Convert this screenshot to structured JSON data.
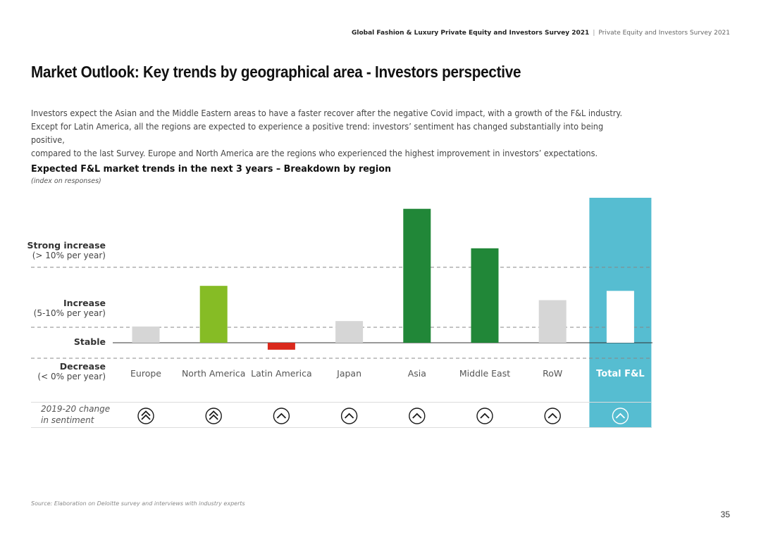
{
  "header": {
    "report": "Global Fashion & Luxury Private Equity and Investors Survey 2021",
    "separator": "|",
    "subtitle": "Private Equity and Investors Survey 2021"
  },
  "page_title": "Market Outlook: Key trends by geographical area - Investors perspective",
  "intro": [
    "Investors expect the Asian and the Middle Eastern areas to have a faster recover after the negative Covid impact, with a growth of the F&L industry.",
    "Except for Latin America, all the regions are expected to experience a positive trend: investors’ sentiment has changed substantially into being positive,",
    "compared to the last Survey. Europe and North America are the regions who experienced the highest improvement in investors’ expectations."
  ],
  "chart_data": {
    "type": "bar",
    "title": "Expected F&L market trends in the next 3 years – Breakdown by region",
    "subtitle": "(index on responses)",
    "categories": [
      "Europe",
      "North America",
      "Latin America",
      "Japan",
      "Asia",
      "Middle East",
      "RoW",
      "Total F&L"
    ],
    "values": [
      0.42,
      1.47,
      -0.18,
      0.56,
      3.46,
      2.44,
      1.1,
      1.34
    ],
    "ylim": [
      -0.5,
      3.7
    ],
    "y_levels": [
      {
        "name": "Strong increase",
        "desc": "(> 10% per year)",
        "value": 1.95
      },
      {
        "name": "Increase",
        "desc": "(5-10% per year)",
        "value": 0.4
      },
      {
        "name": "Stable",
        "desc": "",
        "value": 0
      },
      {
        "name": "Decrease",
        "desc": "(< 0% per year)",
        "value": -0.4
      }
    ],
    "bar_colors": [
      "#d6d6d6",
      "#86bc25",
      "#da291c",
      "#d6d6d6",
      "#218738",
      "#218738",
      "#d6d6d6",
      "#ffffff"
    ],
    "highlight_color": "#56bdd1",
    "highlight_category": "Total F&L",
    "sentiment_label": [
      "2019-20 change",
      "in sentiment"
    ],
    "sentiment": [
      "double-up",
      "double-up",
      "up",
      "up",
      "up",
      "up",
      "up",
      "up"
    ]
  },
  "source": "Source: Elaboration on Deloitte survey and interviews with industry experts",
  "page_number": "35"
}
